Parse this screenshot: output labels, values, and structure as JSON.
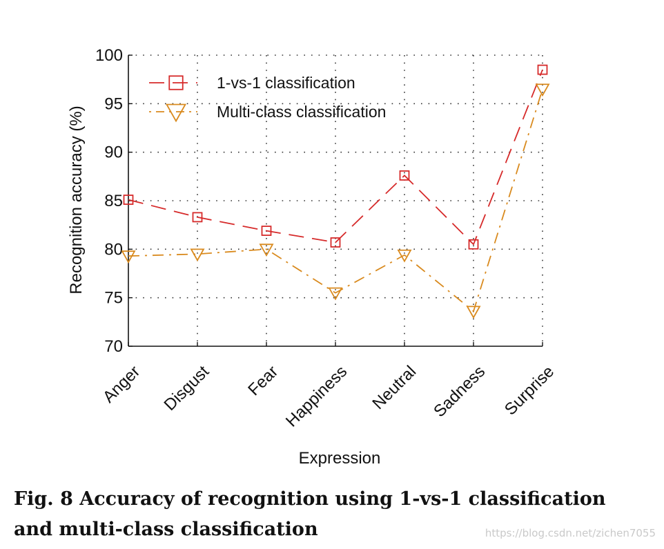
{
  "chart_data": {
    "type": "line",
    "categories": [
      "Anger",
      "Disgust",
      "Fear",
      "Happiness",
      "Neutral",
      "Sadness",
      "Surprise"
    ],
    "series": [
      {
        "name": "1-vs-1 classification",
        "values": [
          85.1,
          83.3,
          81.9,
          80.7,
          87.6,
          80.5,
          98.5
        ],
        "color": "#d62a2a",
        "marker": "square",
        "line_style": "dashed"
      },
      {
        "name": "Multi-class classification",
        "values": [
          79.3,
          79.5,
          80.0,
          75.5,
          79.4,
          73.6,
          96.5
        ],
        "color": "#d98a1e",
        "marker": "triangle-down",
        "line_style": "dash-dot"
      }
    ],
    "xlabel": "Expression",
    "ylabel": "Recognition accuracy (%)",
    "ylim": [
      70,
      100
    ],
    "yticks": [
      70,
      75,
      80,
      85,
      90,
      95,
      100
    ],
    "grid": true,
    "legend_position": "top-left"
  },
  "caption": {
    "text": "Fig. 8  Accuracy of recognition using 1-vs-1 classification and multi-class classification"
  },
  "watermark": {
    "text": "https://blog.csdn.net/zichen7055"
  }
}
